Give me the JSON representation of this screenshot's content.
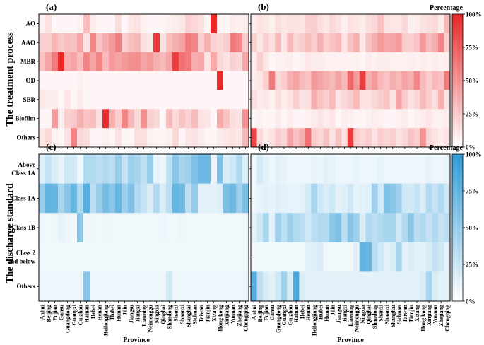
{
  "figure": {
    "row_titles": [
      "The treatment process",
      "The discharge standard"
    ],
    "xlabel": "Province",
    "colorbar_title": "Percentage"
  },
  "colors": {
    "red": "#e8292a",
    "blue": "#2f9bd6",
    "axis": "#000000"
  },
  "provinces": [
    "Anhui",
    "Beijing",
    "Fujian",
    "Gansu",
    "Guangdong",
    "Guangxi",
    "Guizhou",
    "Hainan",
    "Hebei",
    "Henan",
    "Heilongjiang",
    "Hubei",
    "Hunan",
    "Jilin",
    "Jiangsu",
    "Jiangxi",
    "Liaoning",
    "Neimenggu",
    "Ningxia",
    "Qinghai",
    "Shandong",
    "Shanxi",
    "Shaanxi",
    "Shanghai",
    "Sichuan",
    "Taiwan",
    "Tianjin",
    "Xizang",
    "Hong kong",
    "Xinjiang",
    "Yunnan",
    "Zhejiang",
    "Chongqing"
  ],
  "chart_data": [
    {
      "type": "heatmap",
      "panel": "(a)",
      "color": "red",
      "value_range": [
        0,
        100
      ],
      "unit": "%",
      "rows": [
        "AO",
        "AAO",
        "MBR",
        "OD",
        "SBR",
        "Biofilm",
        "Others"
      ],
      "values": [
        [
          3,
          10,
          0,
          0,
          0,
          0,
          3,
          28,
          5,
          0,
          0,
          0,
          12,
          0,
          8,
          10,
          3,
          0,
          0,
          0,
          3,
          5,
          8,
          18,
          15,
          12,
          0,
          100,
          0,
          0,
          5,
          3,
          5
        ],
        [
          18,
          20,
          32,
          22,
          28,
          25,
          40,
          10,
          55,
          25,
          35,
          45,
          58,
          20,
          28,
          30,
          12,
          8,
          92,
          10,
          28,
          35,
          40,
          60,
          55,
          20,
          35,
          18,
          15,
          20,
          60,
          55,
          20
        ],
        [
          25,
          40,
          60,
          100,
          35,
          40,
          28,
          55,
          40,
          55,
          30,
          45,
          40,
          45,
          50,
          50,
          40,
          45,
          35,
          30,
          40,
          90,
          65,
          60,
          35,
          38,
          10,
          38,
          15,
          10,
          18,
          15,
          38
        ],
        [
          0,
          0,
          0,
          0,
          0,
          0,
          3,
          0,
          0,
          0,
          0,
          0,
          0,
          0,
          0,
          0,
          0,
          0,
          0,
          0,
          0,
          0,
          0,
          0,
          0,
          0,
          0,
          0,
          100,
          0,
          0,
          0,
          0
        ],
        [
          8,
          5,
          5,
          0,
          8,
          0,
          5,
          0,
          0,
          0,
          0,
          0,
          0,
          0,
          0,
          0,
          0,
          0,
          0,
          0,
          0,
          0,
          0,
          0,
          0,
          0,
          0,
          0,
          0,
          0,
          0,
          0,
          0
        ],
        [
          0,
          0,
          45,
          5,
          20,
          22,
          35,
          25,
          28,
          12,
          98,
          35,
          20,
          55,
          30,
          15,
          50,
          20,
          15,
          0,
          30,
          15,
          25,
          18,
          30,
          10,
          8,
          0,
          38,
          25,
          12,
          10,
          50
        ],
        [
          8,
          15,
          3,
          0,
          10,
          55,
          15,
          12,
          0,
          0,
          3,
          0,
          10,
          0,
          0,
          12,
          12,
          3,
          0,
          0,
          3,
          15,
          0,
          8,
          10,
          5,
          0,
          0,
          5,
          8,
          10,
          8,
          30
        ]
      ]
    },
    {
      "type": "heatmap",
      "panel": "(b)",
      "color": "red",
      "value_range": [
        0,
        100
      ],
      "unit": "%",
      "rows": [
        "AO",
        "AAO",
        "MBR",
        "OD",
        "SBR",
        "Biofilm",
        "Others"
      ],
      "values": [
        [
          5,
          10,
          8,
          3,
          12,
          8,
          10,
          10,
          8,
          18,
          20,
          12,
          8,
          15,
          10,
          3,
          10,
          8,
          5,
          12,
          15,
          25,
          10,
          8,
          8,
          15,
          3,
          5,
          10,
          12,
          15,
          5,
          30
        ],
        [
          18,
          8,
          20,
          12,
          30,
          8,
          30,
          15,
          20,
          28,
          20,
          35,
          20,
          25,
          30,
          10,
          25,
          35,
          8,
          25,
          35,
          45,
          38,
          40,
          45,
          20,
          18,
          25,
          45,
          28,
          35,
          55,
          20
        ],
        [
          5,
          20,
          8,
          0,
          3,
          3,
          5,
          0,
          3,
          8,
          5,
          5,
          3,
          3,
          3,
          3,
          3,
          3,
          0,
          5,
          3,
          5,
          5,
          3,
          3,
          3,
          5,
          3,
          5,
          3,
          5,
          3,
          5
        ],
        [
          5,
          8,
          20,
          60,
          15,
          20,
          35,
          40,
          30,
          25,
          45,
          40,
          35,
          30,
          40,
          30,
          70,
          45,
          90,
          35,
          45,
          30,
          25,
          35,
          30,
          40,
          35,
          55,
          30,
          20,
          30,
          25,
          60
        ],
        [
          12,
          5,
          8,
          3,
          12,
          5,
          10,
          20,
          10,
          12,
          35,
          25,
          20,
          30,
          10,
          15,
          20,
          30,
          10,
          10,
          15,
          20,
          25,
          10,
          40,
          20,
          10,
          15,
          30,
          20,
          12,
          35,
          10
        ],
        [
          0,
          3,
          0,
          0,
          5,
          0,
          5,
          0,
          0,
          3,
          5,
          10,
          5,
          8,
          0,
          5,
          3,
          0,
          0,
          3,
          5,
          3,
          0,
          0,
          3,
          5,
          0,
          3,
          5,
          8,
          3,
          3,
          5
        ],
        [
          85,
          15,
          5,
          10,
          20,
          15,
          40,
          25,
          35,
          65,
          20,
          15,
          25,
          10,
          25,
          10,
          90,
          20,
          15,
          20,
          10,
          20,
          15,
          20,
          10,
          15,
          25,
          20,
          50,
          15,
          10,
          5,
          10
        ]
      ]
    },
    {
      "type": "heatmap",
      "panel": "(c)",
      "color": "blue",
      "value_range": [
        0,
        100
      ],
      "unit": "%",
      "rows": [
        "Above Class 1A",
        "Class 1A",
        "Class 1B",
        "Class 2 and below",
        "Others"
      ],
      "values": [
        [
          12,
          25,
          15,
          8,
          20,
          20,
          5,
          35,
          35,
          30,
          35,
          30,
          48,
          25,
          45,
          40,
          28,
          48,
          8,
          5,
          28,
          55,
          40,
          45,
          60,
          70,
          70,
          8,
          60,
          15,
          20,
          35,
          12
        ],
        [
          48,
          75,
          72,
          40,
          55,
          72,
          35,
          80,
          30,
          48,
          65,
          55,
          72,
          45,
          60,
          35,
          25,
          15,
          35,
          15,
          30,
          72,
          68,
          30,
          50,
          10,
          10,
          10,
          12,
          62,
          70,
          45,
          62
        ],
        [
          5,
          3,
          5,
          8,
          5,
          3,
          55,
          3,
          5,
          3,
          5,
          3,
          3,
          3,
          3,
          3,
          3,
          3,
          3,
          5,
          3,
          3,
          5,
          3,
          3,
          3,
          3,
          3,
          3,
          3,
          3,
          3,
          3
        ],
        [
          3,
          3,
          3,
          3,
          3,
          3,
          3,
          3,
          3,
          3,
          3,
          3,
          3,
          3,
          3,
          3,
          3,
          3,
          3,
          3,
          3,
          3,
          3,
          3,
          3,
          3,
          3,
          3,
          3,
          3,
          3,
          3,
          3
        ],
        [
          5,
          5,
          5,
          5,
          5,
          5,
          5,
          55,
          5,
          5,
          5,
          5,
          5,
          5,
          5,
          5,
          5,
          5,
          5,
          5,
          20,
          5,
          5,
          5,
          5,
          5,
          5,
          5,
          5,
          5,
          5,
          5,
          5
        ]
      ]
    },
    {
      "type": "heatmap",
      "panel": "(d)",
      "color": "blue",
      "value_range": [
        0,
        100
      ],
      "unit": "%",
      "rows": [
        "Above Class 1A",
        "Class 1A",
        "Class 1B",
        "Class 2 and below",
        "Others"
      ],
      "values": [
        [
          5,
          18,
          10,
          5,
          10,
          8,
          5,
          5,
          5,
          5,
          8,
          5,
          10,
          8,
          5,
          5,
          5,
          8,
          5,
          5,
          5,
          8,
          5,
          5,
          5,
          5,
          5,
          5,
          5,
          8,
          5,
          5,
          8
        ],
        [
          5,
          8,
          10,
          8,
          12,
          10,
          8,
          8,
          10,
          18,
          40,
          20,
          15,
          20,
          10,
          12,
          20,
          8,
          10,
          12,
          45,
          20,
          60,
          55,
          45,
          20,
          18,
          25,
          15,
          35,
          25,
          35,
          20
        ],
        [
          10,
          20,
          40,
          10,
          45,
          30,
          45,
          35,
          30,
          20,
          30,
          35,
          35,
          55,
          60,
          30,
          55,
          45,
          15,
          35,
          30,
          35,
          40,
          40,
          20,
          35,
          55,
          30,
          35,
          25,
          35,
          25,
          30
        ],
        [
          3,
          3,
          3,
          3,
          3,
          3,
          3,
          3,
          3,
          10,
          12,
          15,
          3,
          3,
          3,
          3,
          3,
          12,
          75,
          70,
          30,
          20,
          10,
          15,
          40,
          10,
          15,
          10,
          10,
          15,
          25,
          20,
          10
        ],
        [
          80,
          30,
          15,
          10,
          20,
          45,
          15,
          85,
          15,
          10,
          10,
          10,
          10,
          10,
          10,
          10,
          10,
          10,
          10,
          10,
          10,
          10,
          10,
          10,
          10,
          10,
          10,
          10,
          15,
          40,
          15,
          10,
          10
        ]
      ]
    }
  ],
  "colorbars": [
    {
      "color": "red",
      "title": "Percentage",
      "tick_labels": [
        "0%",
        "25%",
        "50%",
        "75%",
        "100%"
      ]
    },
    {
      "color": "blue",
      "title": "Percentage",
      "tick_labels": [
        "0%",
        "25%",
        "50%",
        "75%",
        "100%"
      ]
    }
  ]
}
